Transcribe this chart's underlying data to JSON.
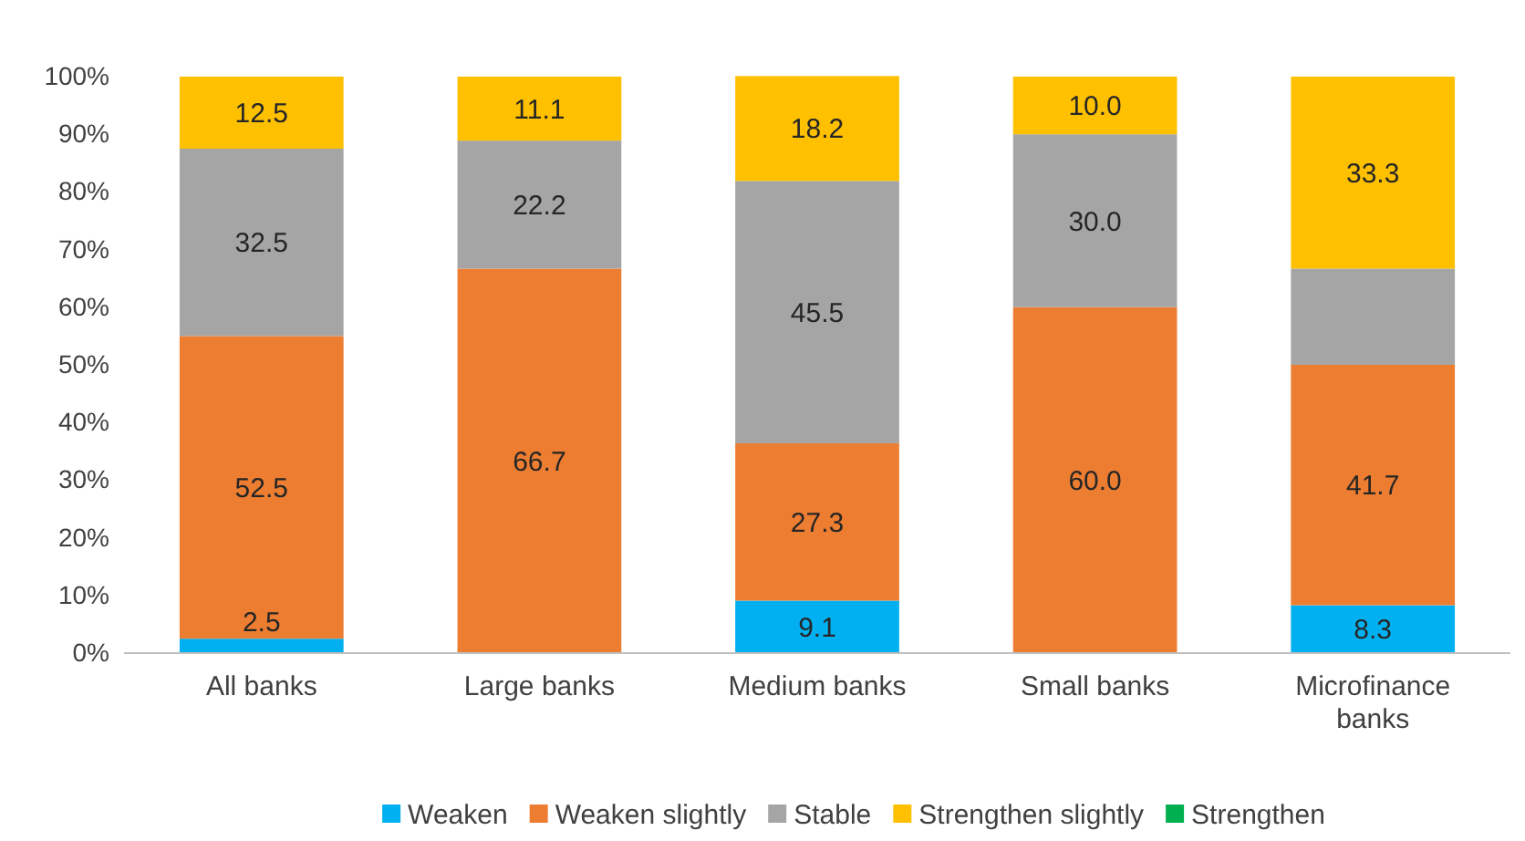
{
  "chart_data": {
    "type": "bar",
    "stacked": true,
    "categories": [
      "All banks",
      "Large banks",
      "Medium banks",
      "Small banks",
      "Microfinance banks"
    ],
    "series": [
      {
        "name": "Weaken",
        "color": "#00b0f0",
        "values": [
          2.5,
          0,
          9.1,
          0,
          8.3
        ],
        "value_labels": [
          "2.5",
          null,
          "9.1",
          null,
          "8.3"
        ]
      },
      {
        "name": "Weaken slightly",
        "color": "#ed7d31",
        "values": [
          52.5,
          66.7,
          27.3,
          60.0,
          41.7
        ],
        "value_labels": [
          "52.5",
          "66.7",
          "27.3",
          "60.0",
          "41.7"
        ]
      },
      {
        "name": "Stable",
        "color": "#a5a5a5",
        "values": [
          32.5,
          22.2,
          45.5,
          30.0,
          16.7
        ],
        "value_labels": [
          "32.5",
          "22.2",
          "45.5",
          "30.0",
          null
        ]
      },
      {
        "name": "Strengthen slightly",
        "color": "#ffc000",
        "values": [
          12.5,
          11.1,
          18.2,
          10.0,
          33.3
        ],
        "value_labels": [
          "12.5",
          "11.1",
          "18.2",
          "10.0",
          "33.3"
        ]
      },
      {
        "name": "Strengthen",
        "color": "#00b050",
        "values": [
          0,
          0,
          0,
          0,
          0
        ]
      }
    ],
    "ylim": [
      0,
      100
    ],
    "yticks": [
      {
        "value": 0,
        "label": "0%"
      },
      {
        "value": 10,
        "label": "10%"
      },
      {
        "value": 20,
        "label": "20%"
      },
      {
        "value": 30,
        "label": "30%"
      },
      {
        "value": 40,
        "label": "40%"
      },
      {
        "value": 50,
        "label": "50%"
      },
      {
        "value": 60,
        "label": "60%"
      },
      {
        "value": 70,
        "label": "70%"
      },
      {
        "value": 80,
        "label": "80%"
      },
      {
        "value": 90,
        "label": "90%"
      },
      {
        "value": 100,
        "label": "100%"
      }
    ],
    "grid": false,
    "legend": "bottom"
  }
}
